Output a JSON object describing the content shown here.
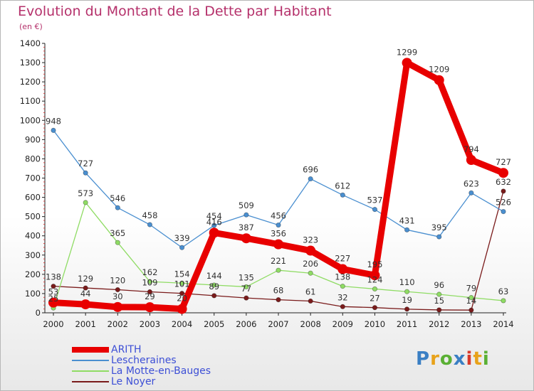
{
  "header": {
    "title": "Evolution du Montant de la Dette par Habitant",
    "subtitle": "(en €)"
  },
  "logo": {
    "text": "Proxiti",
    "colors": [
      "#3a7fc4",
      "#e8a21a",
      "#5ab034",
      "#3a7fc4",
      "#d93a2b",
      "#e8a21a",
      "#5ab034"
    ]
  },
  "chart_data": {
    "type": "line",
    "x": [
      "2000",
      "2001",
      "2002",
      "2003",
      "2004",
      "2005",
      "2006",
      "2007",
      "2008",
      "2009",
      "2010",
      "2011",
      "2012",
      "2013",
      "2014"
    ],
    "ylim": [
      0,
      1400
    ],
    "yticks": [
      "0",
      "100",
      "200",
      "300",
      "400",
      "500",
      "600",
      "700",
      "800",
      "900",
      "1000",
      "1100",
      "1200",
      "1300",
      "1400"
    ],
    "grid": false,
    "legend_position": "bottom-left",
    "series": [
      {
        "name": "ARITH",
        "color": "#e80000",
        "values": [
          53,
          44,
          30,
          29,
          20,
          416,
          387,
          356,
          323,
          227,
          195,
          1299,
          1209,
          794,
          727
        ],
        "labels": [
          "53",
          "44",
          "30",
          "29",
          "20",
          "416",
          "387",
          "356",
          "323",
          "227",
          "195",
          "1299",
          "1209",
          "794",
          "727"
        ]
      },
      {
        "name": "Lescheraines",
        "color": "#4a8fd0",
        "values": [
          948,
          727,
          546,
          458,
          339,
          454,
          509,
          456,
          696,
          612,
          537,
          431,
          395,
          623,
          526
        ],
        "labels": [
          "948",
          "727",
          "546",
          "458",
          "339",
          "454",
          "509",
          "456",
          "696",
          "612",
          "537",
          "431",
          "395",
          "623",
          "526"
        ]
      },
      {
        "name": "La Motte-en-Bauges",
        "color": "#8fdc64",
        "values": [
          25,
          573,
          365,
          162,
          154,
          144,
          135,
          221,
          206,
          138,
          124,
          110,
          96,
          79,
          63
        ],
        "labels": [
          "25",
          "573",
          "365",
          "162",
          "154",
          "144",
          "135",
          "221",
          "206",
          "138",
          "124",
          "110",
          "96",
          "79",
          "63"
        ]
      },
      {
        "name": "Le Noyer",
        "color": "#7a1b1b",
        "values": [
          138,
          129,
          120,
          109,
          101,
          89,
          77,
          68,
          61,
          32,
          27,
          19,
          15,
          14,
          632
        ],
        "labels": [
          "138",
          "129",
          "120",
          "109",
          "101",
          "89",
          "77",
          "68",
          "61",
          "32",
          "27",
          "19",
          "15",
          "14",
          "632"
        ]
      }
    ]
  }
}
